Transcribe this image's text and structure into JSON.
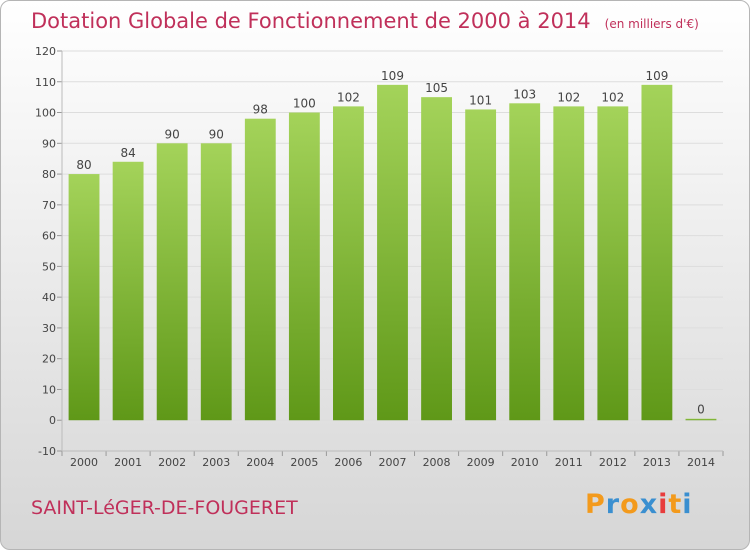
{
  "header": {
    "title": "Dotation Globale de Fonctionnement de 2000 à 2014",
    "unit": "(en milliers d'€)"
  },
  "footer": {
    "commune": "SAINT-LéGER-DE-FOUGERET",
    "logo_text": "Proxiti",
    "logo_letter_colors": [
      "#f39a1c",
      "#3a8fd0",
      "#f39a1c",
      "#3a8fd0",
      "#e83c3c",
      "#f39a1c",
      "#3a8fd0"
    ]
  },
  "colors": {
    "title": "#c0305a",
    "bar_light": "#a4d35a",
    "bar_dark": "#5f9818",
    "grid": "#dddddd",
    "axis_text": "#444444"
  },
  "chart_data": {
    "type": "bar",
    "categories": [
      "2000",
      "2001",
      "2002",
      "2003",
      "2004",
      "2005",
      "2006",
      "2007",
      "2008",
      "2009",
      "2010",
      "2011",
      "2012",
      "2013",
      "2014"
    ],
    "values": [
      80,
      84,
      90,
      90,
      98,
      100,
      102,
      109,
      105,
      101,
      103,
      102,
      102,
      109,
      0
    ],
    "data_labels": [
      "80",
      "84",
      "90",
      "90",
      "98",
      "100",
      "102",
      "109",
      "105",
      "101",
      "103",
      "102",
      "102",
      "109",
      "0"
    ],
    "yticks": [
      -10,
      0,
      10,
      20,
      30,
      40,
      50,
      60,
      70,
      80,
      90,
      100,
      110,
      120
    ],
    "ylim": [
      -10,
      120
    ],
    "grid": true,
    "legend": "none"
  }
}
